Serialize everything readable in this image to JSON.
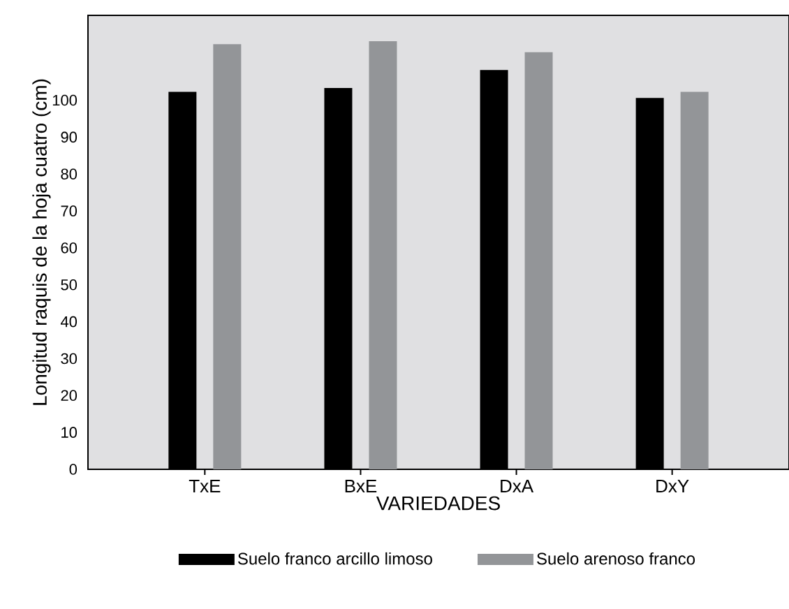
{
  "chart_data": {
    "type": "bar",
    "xlabel": "VARIEDADES",
    "ylabel": "Longitud raquis de la hoja cuatro (cm)",
    "categories": [
      "TxE",
      "BxE",
      "DxA",
      "DxY"
    ],
    "series": [
      {
        "name": "Suelo franco arcillo limoso",
        "color": "#000000",
        "values": [
          102.3,
          103.3,
          108.2,
          100.6
        ]
      },
      {
        "name": "Suelo arenoso franco",
        "color": "#939598",
        "values": [
          115.2,
          116.0,
          113.0,
          102.3
        ]
      }
    ],
    "ylim": [
      0,
      123
    ],
    "yticks": [
      0,
      10,
      20,
      30,
      40,
      50,
      60,
      70,
      80,
      90,
      100
    ],
    "legend": "bottom",
    "grid": false
  }
}
